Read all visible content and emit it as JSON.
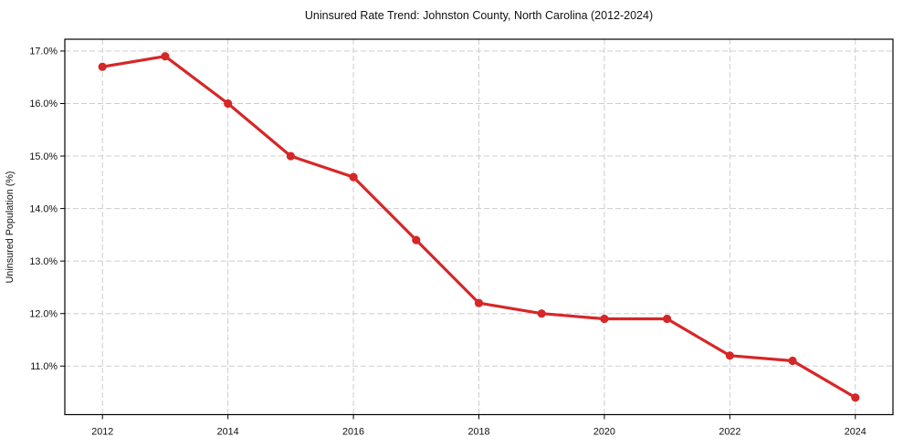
{
  "chart_data": {
    "type": "line",
    "title": "Uninsured Rate Trend: Johnston County, North Carolina (2012-2024)",
    "xlabel": "",
    "ylabel": "Uninsured Population (%)",
    "x": [
      2012,
      2013,
      2014,
      2015,
      2016,
      2017,
      2018,
      2019,
      2020,
      2021,
      2022,
      2023,
      2024
    ],
    "series": [
      {
        "name": "Uninsured Population (%)",
        "color": "#d62728",
        "values": [
          16.7,
          16.9,
          16.0,
          15.0,
          14.6,
          13.4,
          12.2,
          12.0,
          11.9,
          11.9,
          11.2,
          11.1,
          10.4
        ]
      }
    ],
    "xlim": [
      2011.4,
      2024.6
    ],
    "ylim": [
      10.075,
      17.225
    ],
    "x_ticks": [
      {
        "value": 2012,
        "label": "2012"
      },
      {
        "value": 2014,
        "label": "2014"
      },
      {
        "value": 2016,
        "label": "2016"
      },
      {
        "value": 2018,
        "label": "2018"
      },
      {
        "value": 2020,
        "label": "2020"
      },
      {
        "value": 2022,
        "label": "2022"
      },
      {
        "value": 2024,
        "label": "2024"
      }
    ],
    "y_ticks": [
      {
        "value": 11.0,
        "label": "11.0%"
      },
      {
        "value": 12.0,
        "label": "12.0%"
      },
      {
        "value": 13.0,
        "label": "13.0%"
      },
      {
        "value": 14.0,
        "label": "14.0%"
      },
      {
        "value": 15.0,
        "label": "15.0%"
      },
      {
        "value": 16.0,
        "label": "16.0%"
      },
      {
        "value": 17.0,
        "label": "17.0%"
      }
    ],
    "grid": true,
    "grid_style": "dashed",
    "legend_position": "none"
  },
  "style": {
    "line_color": "#d62728",
    "grid_color": "#cdcdcd",
    "spine_color": "#000000",
    "text_color": "#111111",
    "background_color": "#ffffff"
  }
}
